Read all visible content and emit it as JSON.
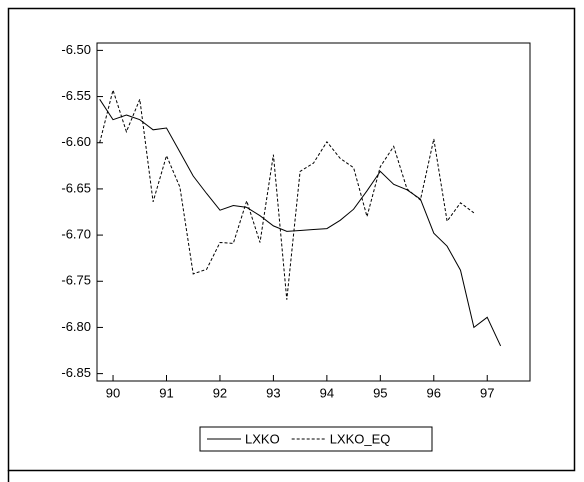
{
  "chart_data": {
    "type": "line",
    "x": [
      1989.75,
      1990,
      1990.25,
      1990.5,
      1990.75,
      1991,
      1991.25,
      1991.5,
      1991.75,
      1992,
      1992.25,
      1992.5,
      1992.75,
      1993,
      1993.25,
      1993.5,
      1993.75,
      1994,
      1994.25,
      1994.5,
      1994.75,
      1995,
      1995.25,
      1995.5,
      1995.75,
      1996,
      1996.25,
      1996.5,
      1996.75,
      1997,
      1997.25
    ],
    "series": [
      {
        "name": "LXKO",
        "color": "#000000",
        "dash": false,
        "values": [
          -6.553,
          -6.575,
          -6.57,
          -6.575,
          -6.586,
          -6.584,
          -6.61,
          -6.636,
          -6.655,
          -6.673,
          -6.668,
          -6.67,
          -6.679,
          -6.69,
          -6.696,
          -6.695,
          -6.694,
          -6.693,
          -6.684,
          -6.672,
          -6.652,
          -6.631,
          -6.645,
          -6.651,
          -6.661,
          -6.698,
          -6.712,
          -6.738,
          -6.8,
          -6.789,
          -6.82
        ]
      },
      {
        "name": "LXKO_EQ",
        "color": "#000000",
        "dash": true,
        "values": [
          -6.6,
          -6.543,
          -6.588,
          -6.553,
          -6.664,
          -6.614,
          -6.648,
          -6.742,
          -6.737,
          -6.708,
          -6.709,
          -6.663,
          -6.708,
          -6.613,
          -6.77,
          -6.631,
          -6.622,
          -6.599,
          -6.617,
          -6.627,
          -6.68,
          -6.626,
          -6.604,
          -6.65,
          -6.662,
          -6.596,
          -6.685,
          -6.665,
          -6.676,
          null,
          null
        ]
      }
    ],
    "xlim": [
      1989.7,
      1997.8
    ],
    "xticks": [
      {
        "value": 1990,
        "label": "90"
      },
      {
        "value": 1991,
        "label": "91"
      },
      {
        "value": 1992,
        "label": "92"
      },
      {
        "value": 1993,
        "label": "93"
      },
      {
        "value": 1994,
        "label": "94"
      },
      {
        "value": 1995,
        "label": "95"
      },
      {
        "value": 1996,
        "label": "96"
      },
      {
        "value": 1997,
        "label": "97"
      }
    ],
    "ylim": [
      -6.858,
      -6.492
    ],
    "yticks": [
      {
        "value": -6.5,
        "label": "-6.50"
      },
      {
        "value": -6.55,
        "label": "-6.55"
      },
      {
        "value": -6.6,
        "label": "-6.60"
      },
      {
        "value": -6.65,
        "label": "-6.65"
      },
      {
        "value": -6.7,
        "label": "-6.70"
      },
      {
        "value": -6.75,
        "label": "-6.75"
      },
      {
        "value": -6.8,
        "label": "-6.80"
      },
      {
        "value": -6.85,
        "label": "-6.85"
      }
    ],
    "grid": false,
    "legend": "bottom"
  }
}
